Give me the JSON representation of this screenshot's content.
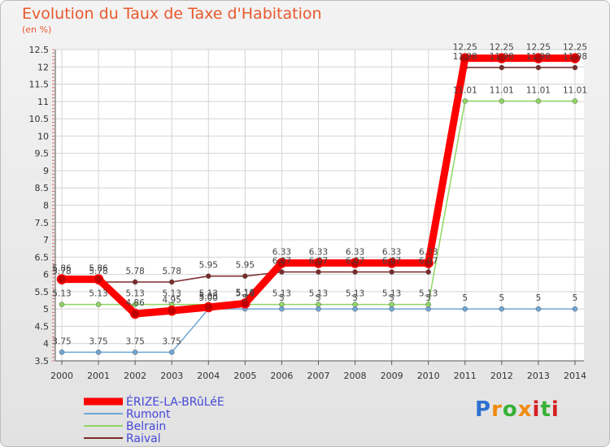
{
  "chart_data": {
    "type": "line",
    "title": "Evolution du Taux de Taxe d'Habitation",
    "subtitle": "(en %)",
    "x": [
      "2000",
      "2001",
      "2002",
      "2003",
      "2004",
      "2005",
      "2006",
      "2007",
      "2008",
      "2009",
      "2010",
      "2011",
      "2012",
      "2013",
      "2014"
    ],
    "ylim": [
      3.5,
      12.5
    ],
    "yticks": [
      "3.5",
      "4",
      "4.5",
      "5",
      "5.5",
      "6",
      "6.5",
      "7",
      "7.5",
      "8",
      "8.5",
      "9",
      "9.5",
      "10",
      "10.5",
      "11",
      "11.5",
      "12",
      "12.5"
    ],
    "series": [
      {
        "name": "ÉRIZE-LA-BRûLéE",
        "color": "#ff0000",
        "values": [
          5.86,
          5.86,
          4.86,
          4.95,
          5.05,
          5.16,
          6.33,
          6.33,
          6.33,
          6.33,
          6.33,
          12.25,
          12.25,
          12.25,
          12.25
        ],
        "labels": [
          "5.86",
          "5.86",
          "4.86",
          "4.95",
          "5.05",
          "5.16",
          "6.33",
          "6.33",
          "6.33",
          "6.33",
          "6.33",
          "12.25",
          "12.25",
          "12.25",
          "12.25"
        ]
      },
      {
        "name": "Rumont",
        "color": "#6fa7d6",
        "values": [
          3.75,
          3.75,
          3.75,
          3.75,
          5.0,
          5.0,
          5.0,
          5.0,
          5.0,
          5.0,
          5.0,
          5.0,
          5.0,
          5.0,
          5.0
        ],
        "labels": [
          "3.75",
          "3.75",
          "3.75",
          "3.75",
          "5.00",
          "5",
          "5",
          "5",
          "5",
          "5",
          "5",
          "5",
          "5",
          "5",
          "5"
        ]
      },
      {
        "name": "Belrain",
        "color": "#8fd663",
        "values": [
          5.13,
          5.13,
          5.13,
          5.13,
          5.13,
          5.13,
          5.13,
          5.13,
          5.13,
          5.13,
          5.13,
          11.01,
          11.01,
          11.01,
          11.01
        ],
        "labels": [
          "5.13",
          "5.13",
          "5.13",
          "5.13",
          "5.13",
          "5.13",
          "5.13",
          "5.13",
          "5.13",
          "5.13",
          "5.13",
          "11.01",
          "11.01",
          "11.01",
          "11.01"
        ]
      },
      {
        "name": "Raival",
        "color": "#7b2a2a",
        "values": [
          5.78,
          5.78,
          5.78,
          5.78,
          5.95,
          5.95,
          6.07,
          6.07,
          6.07,
          6.07,
          6.07,
          11.98,
          11.98,
          11.98,
          11.98
        ],
        "labels": [
          "5.78",
          "5.78",
          "5.78",
          "5.78",
          "5.95",
          "5.95",
          "6.07",
          "6.07",
          "6.07",
          "6.07",
          "6.07",
          "11.98",
          "11.98",
          "11.98",
          "11.98"
        ]
      }
    ]
  },
  "legend": {
    "items": [
      "ÉRIZE-LA-BRûLéE",
      "Rumont",
      "Belrain",
      "Raival"
    ]
  },
  "logo": {
    "letters": [
      "P",
      "r",
      "o",
      "x",
      "i",
      "t",
      "i"
    ],
    "colors": [
      "#2f6fd0",
      "#f08a10",
      "#36b136",
      "#f08a10",
      "#d42020",
      "#36b136",
      "#d42020"
    ]
  }
}
